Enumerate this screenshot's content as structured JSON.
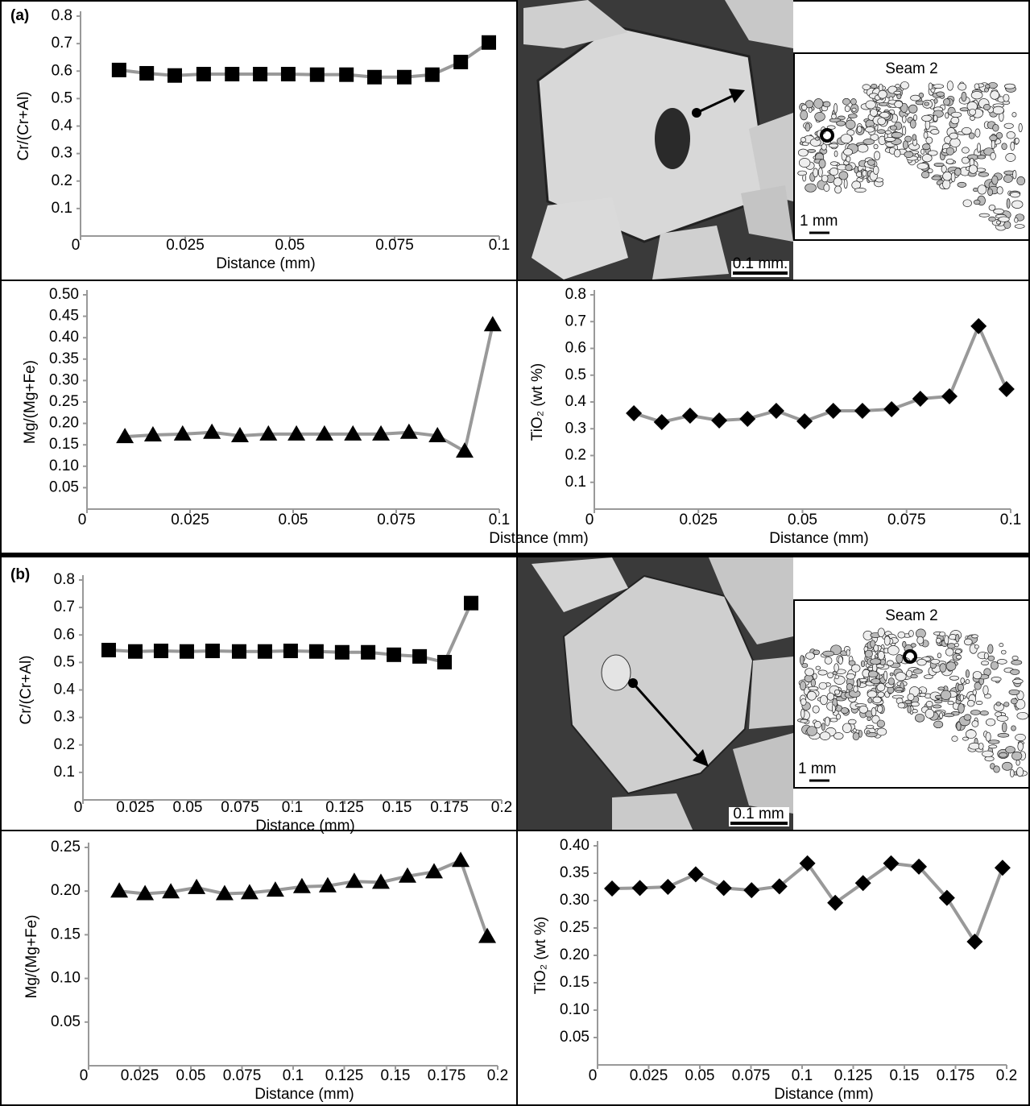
{
  "panels": [
    {
      "label": "(a)",
      "photo_scale": "0.1 mm.",
      "inset_title": "Seam 2",
      "inset_scale": "1 mm"
    },
    {
      "label": "(b)",
      "photo_scale": "0.1 mm",
      "inset_title": "Seam 2",
      "inset_scale": "1 mm"
    }
  ],
  "chart_data": [
    {
      "type": "line",
      "marker": "square",
      "color": "#999999",
      "marker_color": "#000000",
      "y_label": "Cr/(Cr+Al)",
      "x_label": "Distance (mm)",
      "x": [
        0.0092,
        0.0158,
        0.0225,
        0.0294,
        0.0362,
        0.0429,
        0.0496,
        0.0565,
        0.0635,
        0.0702,
        0.0773,
        0.084,
        0.0908,
        0.0975
      ],
      "values": [
        0.604,
        0.592,
        0.584,
        0.589,
        0.589,
        0.589,
        0.589,
        0.587,
        0.587,
        0.578,
        0.578,
        0.587,
        0.633,
        0.704
      ],
      "xlim": [
        0,
        0.1
      ],
      "xticks": [
        0,
        0.025,
        0.05,
        0.075,
        0.1
      ],
      "ylim": [
        0,
        0.8
      ],
      "yticks": [
        0.1,
        0.2,
        0.3,
        0.4,
        0.5,
        0.6,
        0.7,
        0.8
      ]
    },
    {
      "type": "line",
      "marker": "triangle",
      "color": "#999999",
      "marker_color": "#000000",
      "y_label": "Mg/(Mg+Fe)",
      "x_label": "Distance (mm)",
      "x": [
        0.0092,
        0.016,
        0.0232,
        0.0303,
        0.0371,
        0.044,
        0.0508,
        0.0576,
        0.0645,
        0.0713,
        0.0781,
        0.085,
        0.0916,
        0.0984
      ],
      "values": [
        0.169,
        0.173,
        0.175,
        0.179,
        0.171,
        0.175,
        0.175,
        0.175,
        0.175,
        0.175,
        0.179,
        0.171,
        0.135,
        0.43
      ],
      "xlim": [
        0,
        0.1
      ],
      "xticks": [
        0,
        0.025,
        0.05,
        0.075,
        0.1
      ],
      "ylim": [
        0,
        0.5
      ],
      "yticks": [
        0.05,
        {
          "value": 0.1,
          "label": "0.10"
        },
        0.15,
        {
          "value": 0.2,
          "label": "0.20"
        },
        0.25,
        {
          "value": 0.3,
          "label": "0.30"
        },
        0.35,
        {
          "value": 0.4,
          "label": "0.40"
        },
        0.45,
        {
          "value": 0.5,
          "label": "0.50"
        }
      ]
    },
    {
      "type": "line",
      "marker": "diamond",
      "color": "#999999",
      "marker_color": "#000000",
      "y_label": "TiO₂ (wt %)",
      "x_label": "Distance (mm)",
      "x": [
        0.0095,
        0.0162,
        0.023,
        0.03,
        0.0368,
        0.0437,
        0.0505,
        0.0574,
        0.0644,
        0.0714,
        0.0783,
        0.0853,
        0.0923,
        0.099
      ],
      "values": [
        0.358,
        0.325,
        0.349,
        0.331,
        0.337,
        0.367,
        0.328,
        0.367,
        0.367,
        0.373,
        0.412,
        0.421,
        0.683,
        0.448
      ],
      "xlim": [
        0,
        0.1
      ],
      "xticks": [
        0,
        0.025,
        0.05,
        0.075,
        0.1
      ],
      "ylim": [
        0,
        0.8
      ],
      "yticks": [
        0.1,
        0.2,
        0.3,
        0.4,
        0.5,
        0.6,
        0.7,
        0.8
      ]
    },
    {
      "type": "line",
      "marker": "square",
      "color": "#999999",
      "marker_color": "#000000",
      "y_label": "Cr/(Cr+Al)",
      "x_label": "Distance (mm)",
      "x": [
        0.0123,
        0.025,
        0.0373,
        0.0496,
        0.0619,
        0.0746,
        0.0869,
        0.0992,
        0.1115,
        0.1238,
        0.1362,
        0.1485,
        0.1608,
        0.1727,
        0.1854
      ],
      "values": [
        0.545,
        0.54,
        0.542,
        0.54,
        0.542,
        0.54,
        0.54,
        0.542,
        0.54,
        0.537,
        0.537,
        0.528,
        0.522,
        0.501,
        0.716
      ],
      "xlim": [
        0,
        0.2
      ],
      "xticks": [
        0,
        0.025,
        0.05,
        0.075,
        0.1,
        0.125,
        0.15,
        0.175,
        0.2
      ],
      "ylim": [
        0,
        0.8
      ],
      "yticks": [
        0.1,
        0.2,
        0.3,
        0.4,
        0.5,
        0.6,
        0.7,
        0.8
      ]
    },
    {
      "type": "line",
      "marker": "triangle",
      "color": "#999999",
      "marker_color": "#000000",
      "y_label": "Mg/(Mg+Fe)",
      "x_label": "Distance (mm)",
      "x": [
        0.015,
        0.0276,
        0.0402,
        0.0528,
        0.0665,
        0.0787,
        0.0913,
        0.1043,
        0.1169,
        0.1299,
        0.1429,
        0.1559,
        0.1689,
        0.1819,
        0.1949
      ],
      "values": [
        0.2,
        0.197,
        0.199,
        0.204,
        0.197,
        0.198,
        0.201,
        0.205,
        0.206,
        0.211,
        0.21,
        0.217,
        0.222,
        0.235,
        0.148
      ],
      "xlim": [
        0,
        0.2
      ],
      "xticks": [
        0,
        0.025,
        0.05,
        0.075,
        0.1,
        0.125,
        0.15,
        0.175,
        0.2
      ],
      "ylim": [
        0,
        0.25
      ],
      "yticks": [
        0.05,
        {
          "value": 0.1,
          "label": "0.10"
        },
        0.15,
        {
          "value": 0.2,
          "label": "0.20"
        },
        0.25
      ]
    },
    {
      "type": "line",
      "marker": "diamond",
      "color": "#999999",
      "marker_color": "#000000",
      "y_label": "TiO₂ (wt %)",
      "x_label": "Distance (mm)",
      "x": [
        0.0071,
        0.0207,
        0.0344,
        0.048,
        0.0617,
        0.0753,
        0.0889,
        0.1026,
        0.1162,
        0.1298,
        0.1435,
        0.1571,
        0.1708,
        0.1844,
        0.198
      ],
      "values": [
        0.322,
        0.323,
        0.325,
        0.348,
        0.323,
        0.319,
        0.326,
        0.368,
        0.296,
        0.332,
        0.368,
        0.362,
        0.305,
        0.225,
        0.36
      ],
      "xlim": [
        0,
        0.2
      ],
      "xticks": [
        0,
        0.025,
        0.05,
        0.075,
        0.1,
        0.125,
        0.15,
        0.175,
        0.2
      ],
      "ylim": [
        0,
        0.4
      ],
      "yticks": [
        0.05,
        {
          "value": 0.1,
          "label": "0.10"
        },
        0.15,
        {
          "value": 0.2,
          "label": "0.20"
        },
        0.25,
        {
          "value": 0.3,
          "label": "0.30"
        },
        0.35,
        {
          "value": 0.4,
          "label": "0.40"
        }
      ]
    }
  ]
}
